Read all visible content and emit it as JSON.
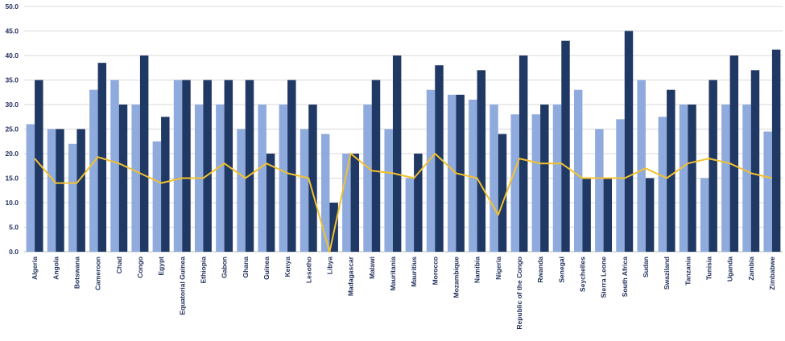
{
  "chart_data": {
    "type": "bar",
    "title": "",
    "xlabel": "",
    "ylabel": "",
    "ylim": [
      0,
      50
    ],
    "yticks": [
      "0.0",
      "5.0",
      "10.0",
      "15.0",
      "20.0",
      "25.0",
      "30.0",
      "35.0",
      "40.0",
      "45.0",
      "50.0"
    ],
    "grid": true,
    "legend": "none",
    "categories": [
      "Algeria",
      "Angola",
      "Botswana",
      "Cameroon",
      "Chad",
      "Congo",
      "Egypt",
      "Equatorial Guinea",
      "Ethiopia",
      "Gabon",
      "Ghana",
      "Guinea",
      "Kenya",
      "Lesotho",
      "Libya",
      "Madagascar",
      "Malawi",
      "Mauritania",
      "Mauritius",
      "Morocco",
      "Mozambique",
      "Namibia",
      "Nigeria",
      "Republic of the Congo",
      "Rwanda",
      "Senegal",
      "Seychelles",
      "Sierra Leone",
      "South Africa",
      "Sudan",
      "Swaziland",
      "Tanzania",
      "Tunisia",
      "Uganda",
      "Zambia",
      "Zimbabwe"
    ],
    "series": [
      {
        "type": "bar",
        "color": "#8faadc",
        "values": [
          26,
          25,
          22,
          33,
          35,
          30,
          22.5,
          35,
          30,
          30,
          25,
          30,
          30,
          25,
          24,
          20,
          30,
          25,
          15,
          33,
          32,
          31,
          30,
          28,
          28,
          30,
          33,
          25,
          27,
          35,
          27.5,
          30,
          15,
          30,
          30,
          24.5
        ]
      },
      {
        "type": "bar",
        "color": "#1f3864",
        "values": [
          35,
          25,
          25,
          38.5,
          30,
          40,
          27.5,
          35,
          35,
          35,
          35,
          20,
          35,
          30,
          10,
          20,
          35,
          40,
          20,
          38,
          32,
          37,
          24,
          40,
          30,
          43,
          15,
          15,
          45,
          15,
          33,
          30,
          35,
          40,
          37,
          41.2
        ]
      },
      {
        "type": "line",
        "color": "#f2c12e",
        "values": [
          19,
          14,
          14,
          19.3,
          18,
          16,
          14,
          15,
          15,
          18,
          15,
          18,
          16,
          15,
          0,
          20,
          16.5,
          16,
          15,
          20,
          16,
          15,
          7.5,
          19,
          18,
          18,
          15,
          15,
          15,
          17,
          15,
          18,
          19,
          18,
          16,
          15
        ]
      }
    ]
  }
}
